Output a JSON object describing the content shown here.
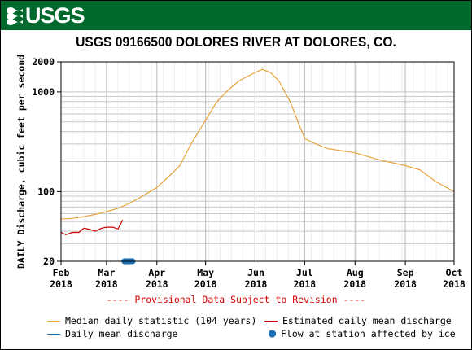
{
  "header": {
    "logo_text": "USGS",
    "logo_color": "#006a2e"
  },
  "provisional": "---- Provisional Data Subject to Revision ----",
  "colors": {
    "median": "#e8a33c",
    "estimated": "#cc0000",
    "daily": "#1a6fb4",
    "ice": "#1a6fb4",
    "provisional": "#d40000"
  },
  "chart_data": {
    "type": "line",
    "title": "USGS 09166500 DOLORES RIVER AT DOLORES, CO.",
    "ylabel": "DAILY Discharge, cubic feet per second",
    "xlabel": "",
    "y_scale": "log",
    "ylim": [
      20,
      2000
    ],
    "y_ticks": [
      20,
      100,
      1000,
      2000
    ],
    "x_range": [
      "2018-02-01",
      "2018-10-01"
    ],
    "x_ticks": [
      {
        "date": "2018-02-01",
        "label1": "Feb",
        "label2": "2018"
      },
      {
        "date": "2018-03-01",
        "label1": "Mar",
        "label2": "2018"
      },
      {
        "date": "2018-04-01",
        "label1": "Apr",
        "label2": "2018"
      },
      {
        "date": "2018-05-01",
        "label1": "May",
        "label2": "2018"
      },
      {
        "date": "2018-06-01",
        "label1": "Jun",
        "label2": "2018"
      },
      {
        "date": "2018-07-01",
        "label1": "Jul",
        "label2": "2018"
      },
      {
        "date": "2018-08-01",
        "label1": "Aug",
        "label2": "2018"
      },
      {
        "date": "2018-09-01",
        "label1": "Sep",
        "label2": "2018"
      },
      {
        "date": "2018-10-01",
        "label1": "Oct",
        "label2": "2018"
      }
    ],
    "grid": true,
    "legend_position": "bottom",
    "series": [
      {
        "name": "Median daily statistic (104 years)",
        "color": "#e8a33c",
        "points": [
          [
            "2018-02-01",
            53
          ],
          [
            "2018-02-08",
            54
          ],
          [
            "2018-02-15",
            56
          ],
          [
            "2018-02-22",
            59
          ],
          [
            "2018-03-01",
            63
          ],
          [
            "2018-03-08",
            68
          ],
          [
            "2018-03-15",
            76
          ],
          [
            "2018-03-22",
            88
          ],
          [
            "2018-04-01",
            110
          ],
          [
            "2018-04-08",
            140
          ],
          [
            "2018-04-15",
            180
          ],
          [
            "2018-04-22",
            300
          ],
          [
            "2018-05-01",
            520
          ],
          [
            "2018-05-08",
            800
          ],
          [
            "2018-05-15",
            1050
          ],
          [
            "2018-05-22",
            1300
          ],
          [
            "2018-06-01",
            1580
          ],
          [
            "2018-06-05",
            1680
          ],
          [
            "2018-06-10",
            1560
          ],
          [
            "2018-06-15",
            1300
          ],
          [
            "2018-06-22",
            800
          ],
          [
            "2018-07-01",
            340
          ],
          [
            "2018-07-08",
            300
          ],
          [
            "2018-07-15",
            270
          ],
          [
            "2018-08-01",
            245
          ],
          [
            "2018-08-15",
            210
          ],
          [
            "2018-09-01",
            182
          ],
          [
            "2018-09-10",
            165
          ],
          [
            "2018-09-20",
            125
          ],
          [
            "2018-10-01",
            100
          ]
        ]
      },
      {
        "name": "Estimated daily mean discharge",
        "color": "#cc0000",
        "points": [
          [
            "2018-02-01",
            39
          ],
          [
            "2018-02-04",
            37
          ],
          [
            "2018-02-08",
            39
          ],
          [
            "2018-02-12",
            39
          ],
          [
            "2018-02-15",
            43
          ],
          [
            "2018-02-18",
            42
          ],
          [
            "2018-02-22",
            40
          ],
          [
            "2018-02-26",
            43
          ],
          [
            "2018-03-01",
            44
          ],
          [
            "2018-03-05",
            44
          ],
          [
            "2018-03-08",
            42
          ],
          [
            "2018-03-11",
            52
          ]
        ]
      },
      {
        "name": "Daily mean discharge",
        "color": "#1a6fb4",
        "points": []
      },
      {
        "name": "Flow at station affected by ice",
        "color": "#1a6fb4",
        "points": [
          [
            "2018-03-12",
            20
          ],
          [
            "2018-03-13",
            20
          ],
          [
            "2018-03-14",
            20
          ],
          [
            "2018-03-15",
            20
          ],
          [
            "2018-03-16",
            20
          ],
          [
            "2018-03-17",
            20
          ]
        ]
      }
    ]
  }
}
